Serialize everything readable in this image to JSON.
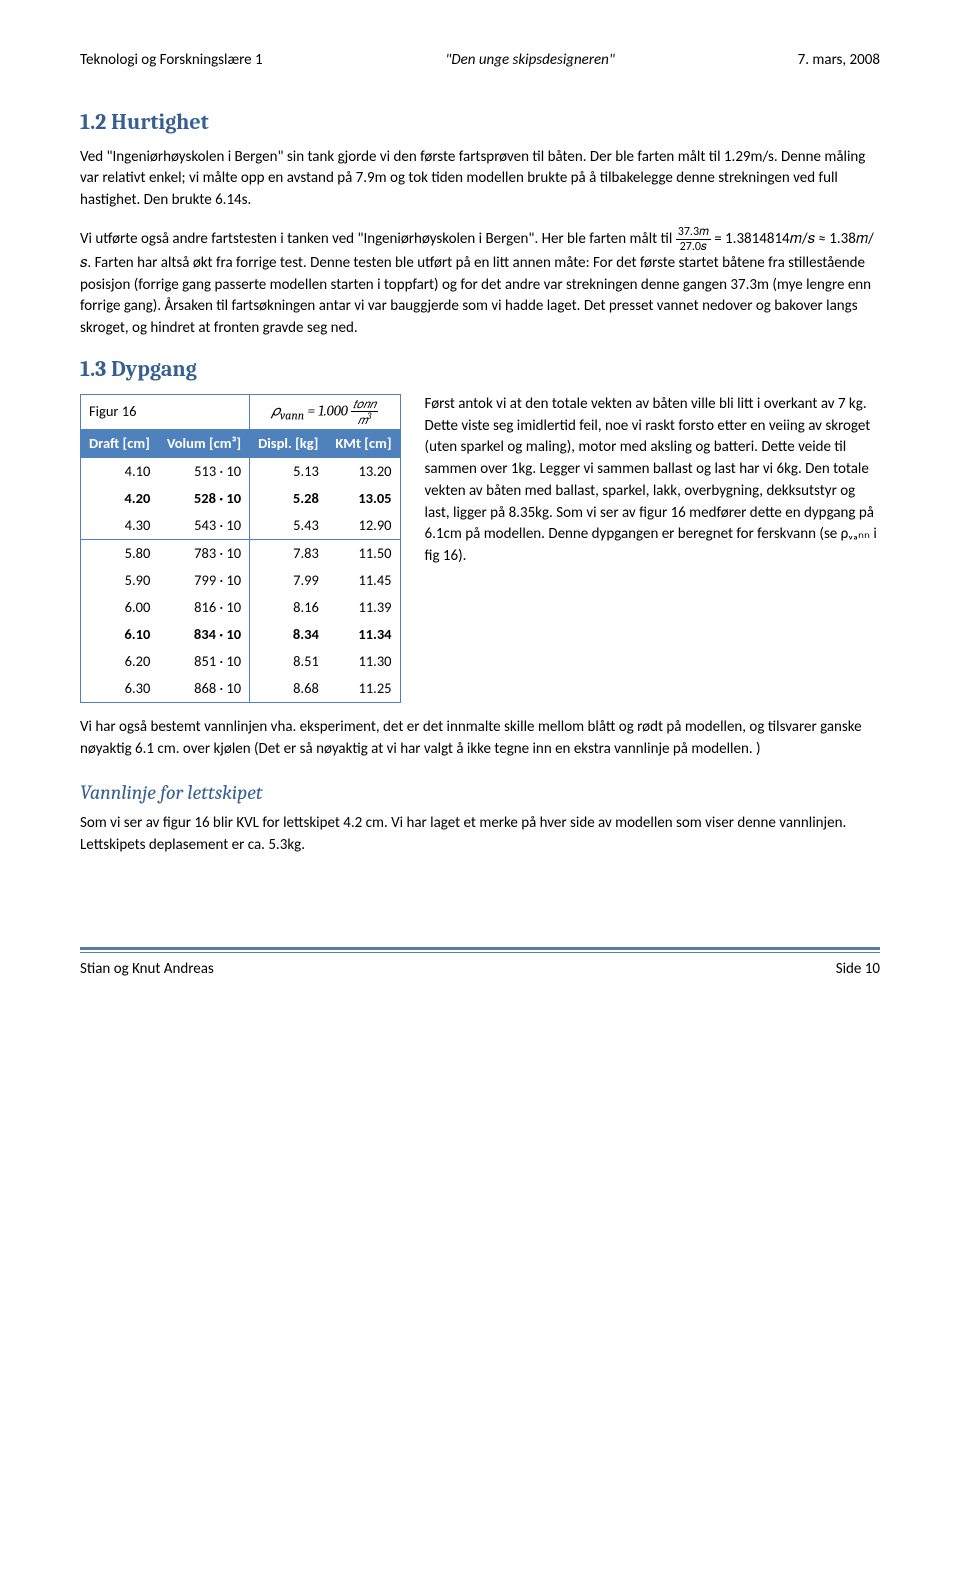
{
  "header": {
    "left": "Teknologi og Forskningslære 1",
    "center": "\"Den unge skipsdesigneren\"",
    "right": "7. mars, 2008"
  },
  "sections": {
    "hurtighet": {
      "title": "1.2 Hurtighet",
      "para": "Ved \"Ingeniørhøyskolen i Bergen\" sin tank gjorde vi den første fartsprøven til båten. Der ble farten målt til 1.29m/s. Denne måling var relativt enkel; vi målte opp en avstand på 7.9m og tok tiden modellen brukte på å tilbakelegge denne strekningen ved full hastighet. Den brukte 6.14s.",
      "para2_before_frac": "Vi utførte også andre fartstesten i tanken ved \"Ingeniørhøyskolen i Bergen\". Her ble farten målt til ",
      "frac_num": "37.3𝑚",
      "frac_den": "27.0𝑠",
      "para2_after_frac": " = 1.3814814𝑚/𝑠 ≈ 1.38𝑚/𝑠. Farten har altså økt fra forrige test. Denne testen ble utført på en litt annen måte: For det første startet båtene fra stillestående posisjon (forrige gang passerte modellen starten i toppfart) og for det andre var strekningen denne gangen 37.3m (mye lengre enn forrige gang). Årsaken til fartsøkningen antar vi var bauggjerde som vi hadde laget. Det presset vannet nedover og bakover langs skroget, og hindret at fronten gravde seg ned."
    },
    "dypgang": {
      "title": "1.3 Dypgang",
      "table": {
        "figur_label": "Figur 16",
        "rho_formula_html": "𝜌<sub style='font-style:italic;'>vann</sub> = 1.000 <span class='frac'><span class='num'>𝑡𝑜𝑛𝑛</span><span class='den'>𝑚<sup>3</sup></span></span>",
        "columns": [
          "Draft [cm]",
          "Volum [cm³]",
          "Displ. [kg]",
          "KMt [cm]"
        ],
        "rows_top": [
          {
            "draft": "4.10",
            "volum": "513 · 10",
            "displ": "5.13",
            "kmt": "13.20",
            "bold": false
          },
          {
            "draft": "4.20",
            "volum": "528 · 10",
            "displ": "5.28",
            "kmt": "13.05",
            "bold": true
          },
          {
            "draft": "4.30",
            "volum": "543 · 10",
            "displ": "5.43",
            "kmt": "12.90",
            "bold": false
          }
        ],
        "rows_bottom": [
          {
            "draft": "5.80",
            "volum": "783 · 10",
            "displ": "7.83",
            "kmt": "11.50",
            "bold": false
          },
          {
            "draft": "5.90",
            "volum": "799 · 10",
            "displ": "7.99",
            "kmt": "11.45",
            "bold": false
          },
          {
            "draft": "6.00",
            "volum": "816 · 10",
            "displ": "8.16",
            "kmt": "11.39",
            "bold": false
          },
          {
            "draft": "6.10",
            "volum": "834 · 10",
            "displ": "8.34",
            "kmt": "11.34",
            "bold": true
          },
          {
            "draft": "6.20",
            "volum": "851 · 10",
            "displ": "8.51",
            "kmt": "11.30",
            "bold": false
          },
          {
            "draft": "6.30",
            "volum": "868 · 10",
            "displ": "8.68",
            "kmt": "11.25",
            "bold": false
          }
        ]
      },
      "side_para": "Først antok vi at den totale vekten av båten ville bli litt i overkant av 7 kg. Dette viste seg imidlertid feil, noe vi raskt forsto etter en veiing av skroget (uten sparkel og maling), motor med aksling og batteri. Dette veide til sammen over 1kg. Legger vi sammen ballast og last har vi 6kg. Den totale vekten av båten med ballast, sparkel, lakk, overbygning, dekksutstyr og last, ligger på 8.35kg. Som vi ser av figur 16 medfører dette en dypgang på 6.1cm på modellen. Denne dypgangen er beregnet for ferskvann (se ρᵥₐₙₙ i fig 16).",
      "below_para": "Vi har også bestemt vannlinjen vha. eksperiment, det er det innmalte skille mellom blått og rødt på modellen, og tilsvarer ganske nøyaktig 6.1 cm. over kjølen (Det er så nøyaktig at vi har valgt å ikke tegne inn en ekstra vannlinje på modellen. )"
    },
    "vannlinje": {
      "title": "Vannlinje for lettskipet",
      "para": "Som vi ser av figur 16 blir KVL for lettskipet 4.2 cm. Vi har laget et merke på hver side av modellen som viser denne vannlinjen. Lettskipets deplasement er ca. 5.3kg."
    }
  },
  "footer": {
    "left": "Stian og Knut Andreas",
    "right": "Side 10"
  },
  "colors": {
    "heading": "#365f91",
    "table_blue": "#4f81bd",
    "hr": "#5b7ca3"
  }
}
